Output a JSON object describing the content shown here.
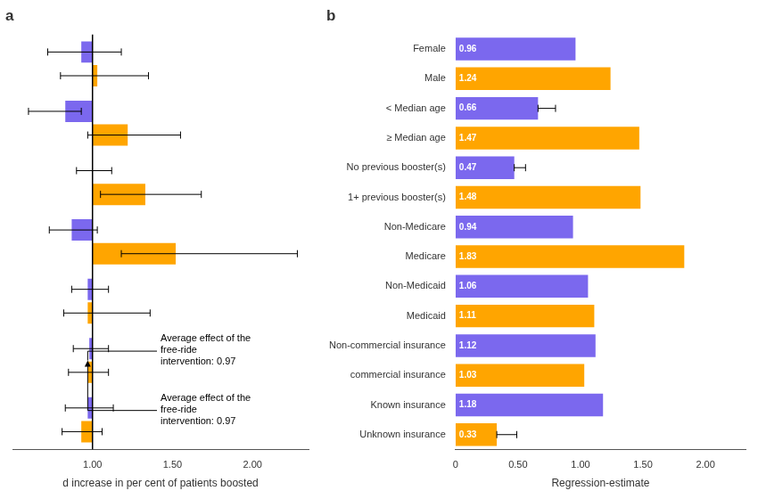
{
  "chart_data": [
    {
      "type": "bar",
      "orientation": "horizontal",
      "title": "a",
      "xlabel": "d increase in per cent of patients boosted",
      "categories": [
        null,
        null,
        null,
        null,
        null,
        null,
        null
      ],
      "base": 1.0,
      "series": [
        {
          "color": "#7B68EE",
          "values": [
            0.93,
            0.83,
            1.0,
            0.87,
            0.97,
            0.98,
            0.97
          ],
          "ci_low": [
            0.72,
            0.6,
            0.9,
            0.73,
            0.87,
            0.88,
            0.83
          ],
          "ci_high": [
            1.18,
            0.93,
            1.12,
            1.03,
            1.1,
            1.1,
            1.13
          ]
        },
        {
          "color": "#FFA500",
          "values": [
            1.03,
            1.22,
            1.33,
            1.52,
            0.97,
            0.97,
            0.93
          ],
          "ci_low": [
            0.8,
            0.97,
            1.05,
            1.18,
            0.82,
            0.85,
            0.81
          ],
          "ci_high": [
            1.35,
            1.55,
            1.68,
            2.28,
            1.36,
            1.1,
            1.06
          ]
        }
      ],
      "xlim": [
        0.5,
        2.35
      ],
      "xticks": [
        {
          "value": 1.0,
          "label": "1.00"
        },
        {
          "value": 1.5,
          "label": "1.50"
        },
        {
          "value": 2.0,
          "label": "2.00"
        }
      ],
      "annotations": [
        {
          "text": "Average effect of the\nfree-ride\nintervention: 0.97",
          "x": 0.97
        },
        {
          "text": "Average effect of the\nfree-ride\nintervention: 0.97",
          "x": 0.97
        }
      ],
      "grid": false,
      "tick_labels": "x"
    },
    {
      "type": "bar",
      "orientation": "horizontal",
      "title": "b",
      "xlabel": "Regression-estimate",
      "categories": [
        "Female",
        "Male",
        "< Median age",
        "≥ Median age",
        "No previous booster(s)",
        "1+ previous booster(s)",
        "Non-Medicare",
        "Medicare",
        "Non-Medicaid",
        "Medicaid",
        "Non-commercial insurance",
        "commercial insurance",
        "Known insurance",
        "Unknown insurance"
      ],
      "values": [
        0.96,
        1.24,
        0.66,
        1.47,
        0.47,
        1.48,
        0.94,
        1.83,
        1.06,
        1.11,
        1.12,
        1.03,
        1.18,
        0.33
      ],
      "colors": [
        "#7B68EE",
        "#FFA500",
        "#7B68EE",
        "#FFA500",
        "#7B68EE",
        "#FFA500",
        "#7B68EE",
        "#FFA500",
        "#7B68EE",
        "#FFA500",
        "#7B68EE",
        "#FFA500",
        "#7B68EE",
        "#FFA500"
      ],
      "error_minus": [
        null,
        null,
        0.0,
        null,
        0.0,
        null,
        null,
        null,
        null,
        null,
        null,
        null,
        null,
        0.0
      ],
      "error_plus": [
        null,
        null,
        0.14,
        null,
        0.09,
        null,
        null,
        null,
        null,
        null,
        null,
        null,
        null,
        0.16
      ],
      "xlim": [
        0,
        2.32
      ],
      "xticks": [
        0,
        {
          "value": 0.5,
          "label": "0.50"
        },
        {
          "value": 1.0,
          "label": "1.00"
        },
        {
          "value": 1.5,
          "label": "1.50"
        },
        {
          "value": 2.0,
          "label": "2.00"
        }
      ],
      "data_labels": true,
      "grid": false
    }
  ]
}
